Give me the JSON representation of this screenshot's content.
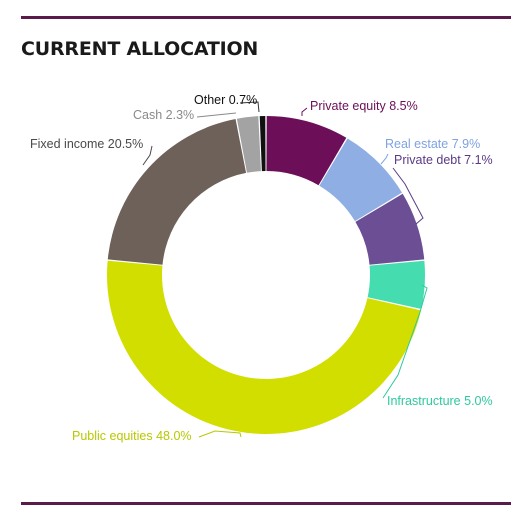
{
  "page": {
    "title": "CURRENT ALLOCATION",
    "rule_color": "#5a1a4a"
  },
  "chart_data": {
    "type": "pie",
    "subtype": "donut",
    "title": "CURRENT ALLOCATION",
    "start": "12 o'clock, clockwise",
    "slices": [
      {
        "label": "Private equity",
        "value": 8.5,
        "display": "Private equity 8.5%",
        "color": "#6d0e58",
        "label_color": "#6d0e58"
      },
      {
        "label": "Real estate",
        "value": 7.9,
        "display": "Real estate 7.9%",
        "color": "#8faee3",
        "label_color": "#7fa3e0"
      },
      {
        "label": "Private debt",
        "value": 7.1,
        "display": "Private debt 7.1%",
        "color": "#6c4e94",
        "label_color": "#5a3a86"
      },
      {
        "label": "Infrastructure",
        "value": 5.0,
        "display": "Infrastructure 5.0%",
        "color": "#45dcb0",
        "label_color": "#2fc99e"
      },
      {
        "label": "Public equities",
        "value": 48.0,
        "display": "Public equities 48.0%",
        "color": "#d1de00",
        "label_color": "#b8c800"
      },
      {
        "label": "Fixed income",
        "value": 20.5,
        "display": "Fixed income 20.5%",
        "color": "#6e6159",
        "label_color": "#4a4a4a"
      },
      {
        "label": "Cash",
        "value": 2.3,
        "display": "Cash 2.3%",
        "color": "#a3a3a3",
        "label_color": "#8a8a8a"
      },
      {
        "label": "Other",
        "value": 0.7,
        "display": "Other 0.7%",
        "color": "#111111",
        "label_color": "#111111"
      }
    ]
  }
}
